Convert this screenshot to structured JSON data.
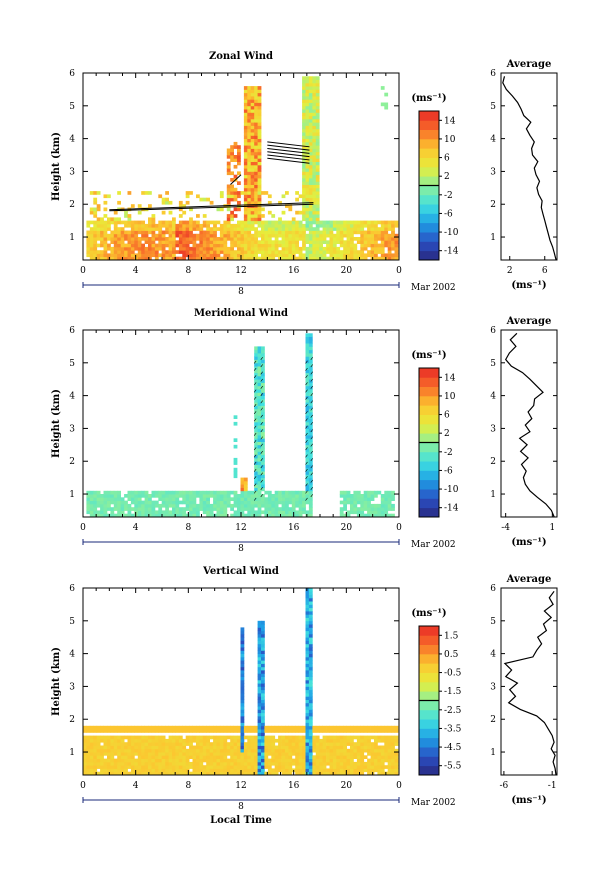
{
  "chart_data": [
    {
      "type": "heatmap",
      "title": "Zonal Wind",
      "ylabel": "Height (km)",
      "xlabel": "",
      "xlim": [
        0,
        24
      ],
      "ylim": [
        0.3,
        6
      ],
      "x_ticks": [
        "0",
        "4",
        "8",
        "12",
        "16",
        "20",
        "0"
      ],
      "y_ticks": [
        "1",
        "2",
        "3",
        "4",
        "5",
        "6"
      ],
      "date_day": "8",
      "date_label": "Mar 2002",
      "colorbar": {
        "unit": "(ms⁻¹)",
        "ticks": [
          "14",
          "10",
          "6",
          "2",
          "-2",
          "-6",
          "-10",
          "-14"
        ],
        "range": [
          -16,
          16
        ]
      },
      "profile": {
        "title": "Average",
        "xlabel": "(ms⁻¹)",
        "x_ticks": [
          "2",
          "6"
        ],
        "xlim": [
          1,
          7.4
        ],
        "heights": [
          0.3,
          0.5,
          0.7,
          0.9,
          1.1,
          1.3,
          1.5,
          1.7,
          1.9,
          2.1,
          2.3,
          2.5,
          2.7,
          2.9,
          3.1,
          3.3,
          3.5,
          3.7,
          3.9,
          4.1,
          4.3,
          4.5,
          4.7,
          4.9,
          5.1,
          5.3,
          5.5,
          5.7,
          5.9
        ],
        "values": [
          7.3,
          7.1,
          6.9,
          6.6,
          6.4,
          6.2,
          6.0,
          5.8,
          5.6,
          5.7,
          5.3,
          5.1,
          5.4,
          5.0,
          4.8,
          5.2,
          4.6,
          4.5,
          4.8,
          4.3,
          3.9,
          4.4,
          3.6,
          3.3,
          2.9,
          2.3,
          1.6,
          1.2,
          1.4
        ]
      }
    },
    {
      "type": "heatmap",
      "title": "Meridional Wind",
      "ylabel": "Height (km)",
      "xlabel": "",
      "xlim": [
        0,
        24
      ],
      "ylim": [
        0.3,
        6
      ],
      "x_ticks": [
        "0",
        "4",
        "8",
        "12",
        "16",
        "20",
        "0"
      ],
      "y_ticks": [
        "1",
        "2",
        "3",
        "4",
        "5",
        "6"
      ],
      "date_day": "8",
      "date_label": "Mar 2002",
      "colorbar": {
        "unit": "(ms⁻¹)",
        "ticks": [
          "14",
          "10",
          "6",
          "2",
          "-2",
          "-6",
          "-10",
          "-14"
        ],
        "range": [
          -16,
          16
        ]
      },
      "profile": {
        "title": "Average",
        "xlabel": "(ms⁻¹)",
        "x_ticks": [
          "-4",
          "1"
        ],
        "xlim": [
          -4.5,
          1.5
        ],
        "heights": [
          0.3,
          0.5,
          0.7,
          0.9,
          1.1,
          1.3,
          1.5,
          1.7,
          1.9,
          2.1,
          2.3,
          2.5,
          2.7,
          2.9,
          3.1,
          3.3,
          3.5,
          3.7,
          3.9,
          4.1,
          4.3,
          4.5,
          4.7,
          4.9,
          5.1,
          5.3,
          5.5,
          5.7,
          5.9
        ],
        "values": [
          1.2,
          0.9,
          0.3,
          -0.6,
          -1.4,
          -1.9,
          -2.1,
          -1.8,
          -2.3,
          -1.6,
          -2.4,
          -1.7,
          -2.5,
          -1.4,
          -1.9,
          -1.2,
          -1.6,
          -1.0,
          -0.9,
          0.0,
          -0.7,
          -1.4,
          -2.2,
          -3.4,
          -4.0,
          -3.6,
          -2.9,
          -3.5,
          -2.8
        ]
      }
    },
    {
      "type": "heatmap",
      "title": "Vertical Wind",
      "ylabel": "Height (km)",
      "xlabel": "Local Time",
      "xlim": [
        0,
        24
      ],
      "ylim": [
        0.3,
        6
      ],
      "x_ticks": [
        "0",
        "4",
        "8",
        "12",
        "16",
        "20",
        "0"
      ],
      "y_ticks": [
        "1",
        "2",
        "3",
        "4",
        "5",
        "6"
      ],
      "date_day": "8",
      "date_label": "Mar 2002",
      "colorbar": {
        "unit": "(ms⁻¹)",
        "ticks": [
          "1.5",
          "0.5",
          "-0.5",
          "-1.5",
          "-2.5",
          "-3.5",
          "-4.5",
          "-5.5"
        ],
        "range": [
          -6,
          2
        ]
      },
      "profile": {
        "title": "Average",
        "xlabel": "(ms⁻¹)",
        "x_ticks": [
          "-6",
          "-1"
        ],
        "xlim": [
          -6.3,
          -0.5
        ],
        "heights": [
          0.3,
          0.5,
          0.7,
          0.9,
          1.1,
          1.3,
          1.5,
          1.7,
          1.9,
          2.1,
          2.3,
          2.5,
          2.7,
          2.9,
          3.1,
          3.3,
          3.5,
          3.7,
          3.9,
          4.1,
          4.3,
          4.5,
          4.7,
          4.9,
          5.1,
          5.3,
          5.5,
          5.7,
          5.9
        ],
        "values": [
          -0.6,
          -0.7,
          -0.9,
          -0.7,
          -1.1,
          -0.8,
          -1.0,
          -1.4,
          -1.8,
          -2.6,
          -4.3,
          -5.5,
          -4.8,
          -5.4,
          -4.6,
          -5.8,
          -5.2,
          -5.9,
          -3.0,
          -2.6,
          -2.1,
          -2.5,
          -1.6,
          -1.9,
          -1.1,
          -1.8,
          -0.9,
          -1.3,
          -0.8
        ]
      }
    }
  ]
}
